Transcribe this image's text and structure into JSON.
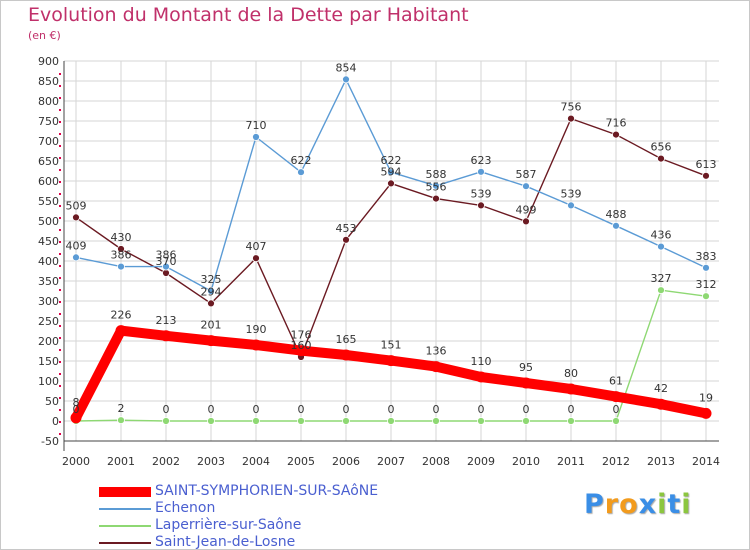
{
  "chart_data": {
    "type": "line",
    "title": "Evolution du Montant de la Dette par Habitant",
    "unit_label": "(en €)",
    "xlabel": "",
    "ylabel": "",
    "x": [
      "2000",
      "2001",
      "2002",
      "2003",
      "2004",
      "2005",
      "2006",
      "2007",
      "2008",
      "2009",
      "2010",
      "2011",
      "2012",
      "2013",
      "2014"
    ],
    "ylim": [
      -50,
      900
    ],
    "yticks": [
      -50,
      0,
      50,
      100,
      150,
      200,
      250,
      300,
      350,
      400,
      450,
      500,
      550,
      600,
      650,
      700,
      750,
      800,
      850,
      900
    ],
    "grid": true,
    "legend_position": "bottom-left",
    "series": [
      {
        "name": "Saint-Jean-de-Losne",
        "color": "#6b1a22",
        "values": [
          509,
          430,
          370,
          294,
          407,
          160,
          453,
          594,
          556,
          539,
          499,
          756,
          716,
          656,
          613
        ]
      },
      {
        "name": "Echenon",
        "color": "#5b9bd5",
        "values": [
          409,
          386,
          386,
          325,
          710,
          622,
          854,
          622,
          588,
          623,
          587,
          539,
          488,
          436,
          383
        ]
      },
      {
        "name": "Laperrière-sur-Saône",
        "color": "#8ed873",
        "values": [
          0,
          2,
          0,
          0,
          0,
          0,
          0,
          0,
          0,
          0,
          0,
          0,
          0,
          327,
          312
        ]
      },
      {
        "name": "SAINT-SYMPHORIEN-SUR-SAôNE",
        "color": "#ff0000",
        "values": [
          8,
          226,
          213,
          201,
          190,
          176,
          165,
          151,
          136,
          110,
          95,
          80,
          61,
          42,
          19
        ]
      }
    ]
  },
  "legend": [
    {
      "name": "SAINT-SYMPHORIEN-SUR-SAôNE",
      "color": "#ff0000",
      "thickness": "thick"
    },
    {
      "name": "Echenon",
      "color": "#5b9bd5",
      "thickness": "thin"
    },
    {
      "name": "Laperrière-sur-Saône",
      "color": "#8ed873",
      "thickness": "thin"
    },
    {
      "name": "Saint-Jean-de-Losne",
      "color": "#6b1a22",
      "thickness": "thin"
    }
  ],
  "logo": {
    "letters": [
      "P",
      "r",
      "o",
      "x",
      "i",
      "t",
      "i"
    ],
    "colors": [
      "#3a8ee6",
      "#f29b1d",
      "#f29b1d",
      "#3a8ee6",
      "#8cc63f",
      "#3a8ee6",
      "#8cc63f"
    ]
  }
}
